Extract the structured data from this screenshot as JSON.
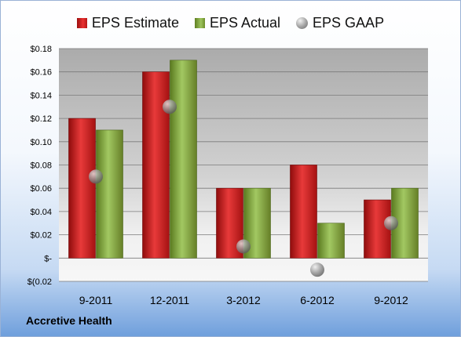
{
  "chart_data": {
    "type": "bar",
    "categories": [
      "9-2011",
      "12-2011",
      "3-2012",
      "6-2012",
      "9-2012"
    ],
    "series": [
      {
        "name": "EPS Estimate",
        "values": [
          0.12,
          0.16,
          0.06,
          0.08,
          0.05
        ],
        "color": "#d42020"
      },
      {
        "name": "EPS Actual",
        "values": [
          0.11,
          0.17,
          0.06,
          0.03,
          0.06
        ],
        "color": "#8db348"
      },
      {
        "name": "EPS GAAP",
        "values": [
          0.07,
          0.13,
          0.01,
          -0.01,
          0.03
        ],
        "color": "#9a9a9a",
        "marker": "sphere"
      }
    ],
    "ylim": [
      -0.02,
      0.18
    ],
    "yticks": [
      -0.02,
      0.0,
      0.02,
      0.04,
      0.06,
      0.08,
      0.1,
      0.12,
      0.14,
      0.16,
      0.18
    ],
    "ytick_labels": [
      "$(0.02",
      "$-",
      "$0.02",
      "$0.04",
      "$0.06",
      "$0.08",
      "$0.10",
      "$0.12",
      "$0.14",
      "$0.16",
      "$0.18"
    ],
    "grid": true,
    "legend_position": "top"
  },
  "company_label": "Accretive Health"
}
